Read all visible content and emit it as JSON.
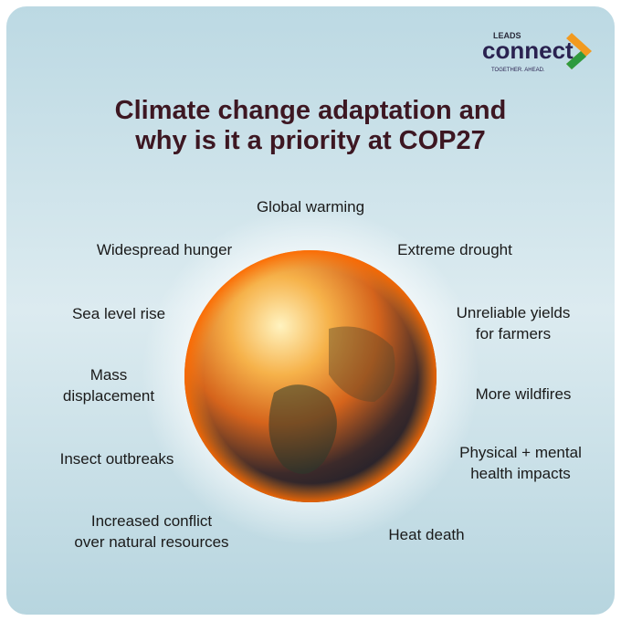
{
  "logo": {
    "prefix": "LEADS",
    "name": "connect",
    "tagline": "TOGETHER. AHEAD."
  },
  "title": {
    "line1": "Climate change adaptation and",
    "line2": "why is it a priority at ",
    "line2_bold": "COP27"
  },
  "labels": [
    {
      "lines": [
        "Global warming"
      ]
    },
    {
      "lines": [
        "Widespread hunger"
      ]
    },
    {
      "lines": [
        "Extreme drought"
      ]
    },
    {
      "lines": [
        "Sea level rise"
      ]
    },
    {
      "lines": [
        "Unreliable yields",
        "for farmers"
      ]
    },
    {
      "lines": [
        "Mass",
        "displacement"
      ]
    },
    {
      "lines": [
        "More wildfires"
      ]
    },
    {
      "lines": [
        "Insect outbreaks"
      ]
    },
    {
      "lines": [
        "Physical + mental",
        "health impacts"
      ]
    },
    {
      "lines": [
        "Increased conflict",
        "over natural resources"
      ]
    },
    {
      "lines": [
        "Heat death"
      ]
    }
  ]
}
